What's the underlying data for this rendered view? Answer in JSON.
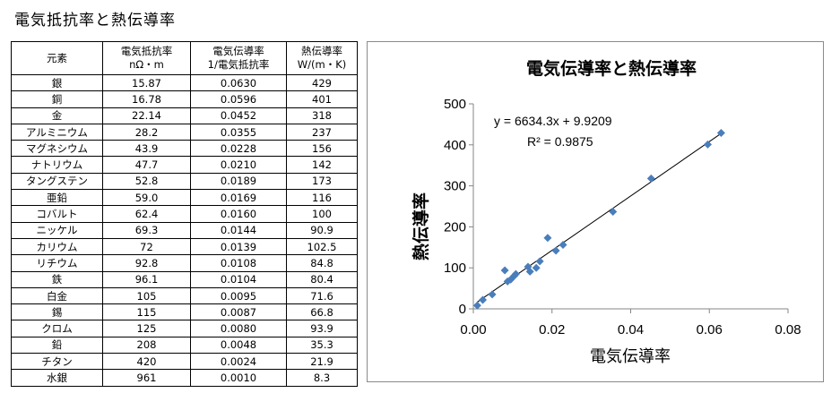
{
  "page": {
    "title": "電気抵抗率と熱伝導率"
  },
  "table": {
    "headers": [
      [
        "元素"
      ],
      [
        "電気抵抗率",
        "nΩ・m"
      ],
      [
        "電気伝導率",
        "1/電気抵抗率"
      ],
      [
        "熱伝導率",
        "W/(m・K)"
      ]
    ],
    "rows": [
      [
        "銀",
        "15.87",
        "0.0630",
        "429"
      ],
      [
        "銅",
        "16.78",
        "0.0596",
        "401"
      ],
      [
        "金",
        "22.14",
        "0.0452",
        "318"
      ],
      [
        "アルミニウム",
        "28.2",
        "0.0355",
        "237"
      ],
      [
        "マグネシウム",
        "43.9",
        "0.0228",
        "156"
      ],
      [
        "ナトリウム",
        "47.7",
        "0.0210",
        "142"
      ],
      [
        "タングステン",
        "52.8",
        "0.0189",
        "173"
      ],
      [
        "亜鉛",
        "59.0",
        "0.0169",
        "116"
      ],
      [
        "コバルト",
        "62.4",
        "0.0160",
        "100"
      ],
      [
        "ニッケル",
        "69.3",
        "0.0144",
        "90.9"
      ],
      [
        "カリウム",
        "72",
        "0.0139",
        "102.5"
      ],
      [
        "リチウム",
        "92.8",
        "0.0108",
        "84.8"
      ],
      [
        "鉄",
        "96.1",
        "0.0104",
        "80.4"
      ],
      [
        "白金",
        "105",
        "0.0095",
        "71.6"
      ],
      [
        "錫",
        "115",
        "0.0087",
        "66.8"
      ],
      [
        "クロム",
        "125",
        "0.0080",
        "93.9"
      ],
      [
        "鉛",
        "208",
        "0.0048",
        "35.3"
      ],
      [
        "チタン",
        "420",
        "0.0024",
        "21.9"
      ],
      [
        "水銀",
        "961",
        "0.0010",
        "8.3"
      ]
    ]
  },
  "chart_data": {
    "type": "scatter",
    "title": "電気伝導率と熱伝導率",
    "xlabel": "電気伝導率",
    "ylabel": "熱伝導率",
    "xlim": [
      0,
      0.08
    ],
    "ylim": [
      0,
      500
    ],
    "xticks": [
      "0.00",
      "0.02",
      "0.04",
      "0.06",
      "0.08"
    ],
    "yticks": [
      "0",
      "100",
      "200",
      "300",
      "400",
      "500"
    ],
    "grid": false,
    "legend": "none",
    "marker_color": "#4a7ebb",
    "x": [
      0.063,
      0.0596,
      0.0452,
      0.0355,
      0.0228,
      0.021,
      0.0189,
      0.0169,
      0.016,
      0.0144,
      0.0139,
      0.0108,
      0.0104,
      0.0095,
      0.0087,
      0.008,
      0.0048,
      0.0024,
      0.001
    ],
    "y": [
      429,
      401,
      318,
      237,
      156,
      142,
      173,
      116,
      100,
      90.9,
      102.5,
      84.8,
      80.4,
      71.6,
      66.8,
      93.9,
      35.3,
      21.9,
      8.3
    ],
    "trendline": {
      "slope": 6634.3,
      "intercept": 9.9209
    },
    "annotations": {
      "equation": "y = 6634.3x + 9.9209",
      "r2": "R² = 0.9875"
    }
  }
}
